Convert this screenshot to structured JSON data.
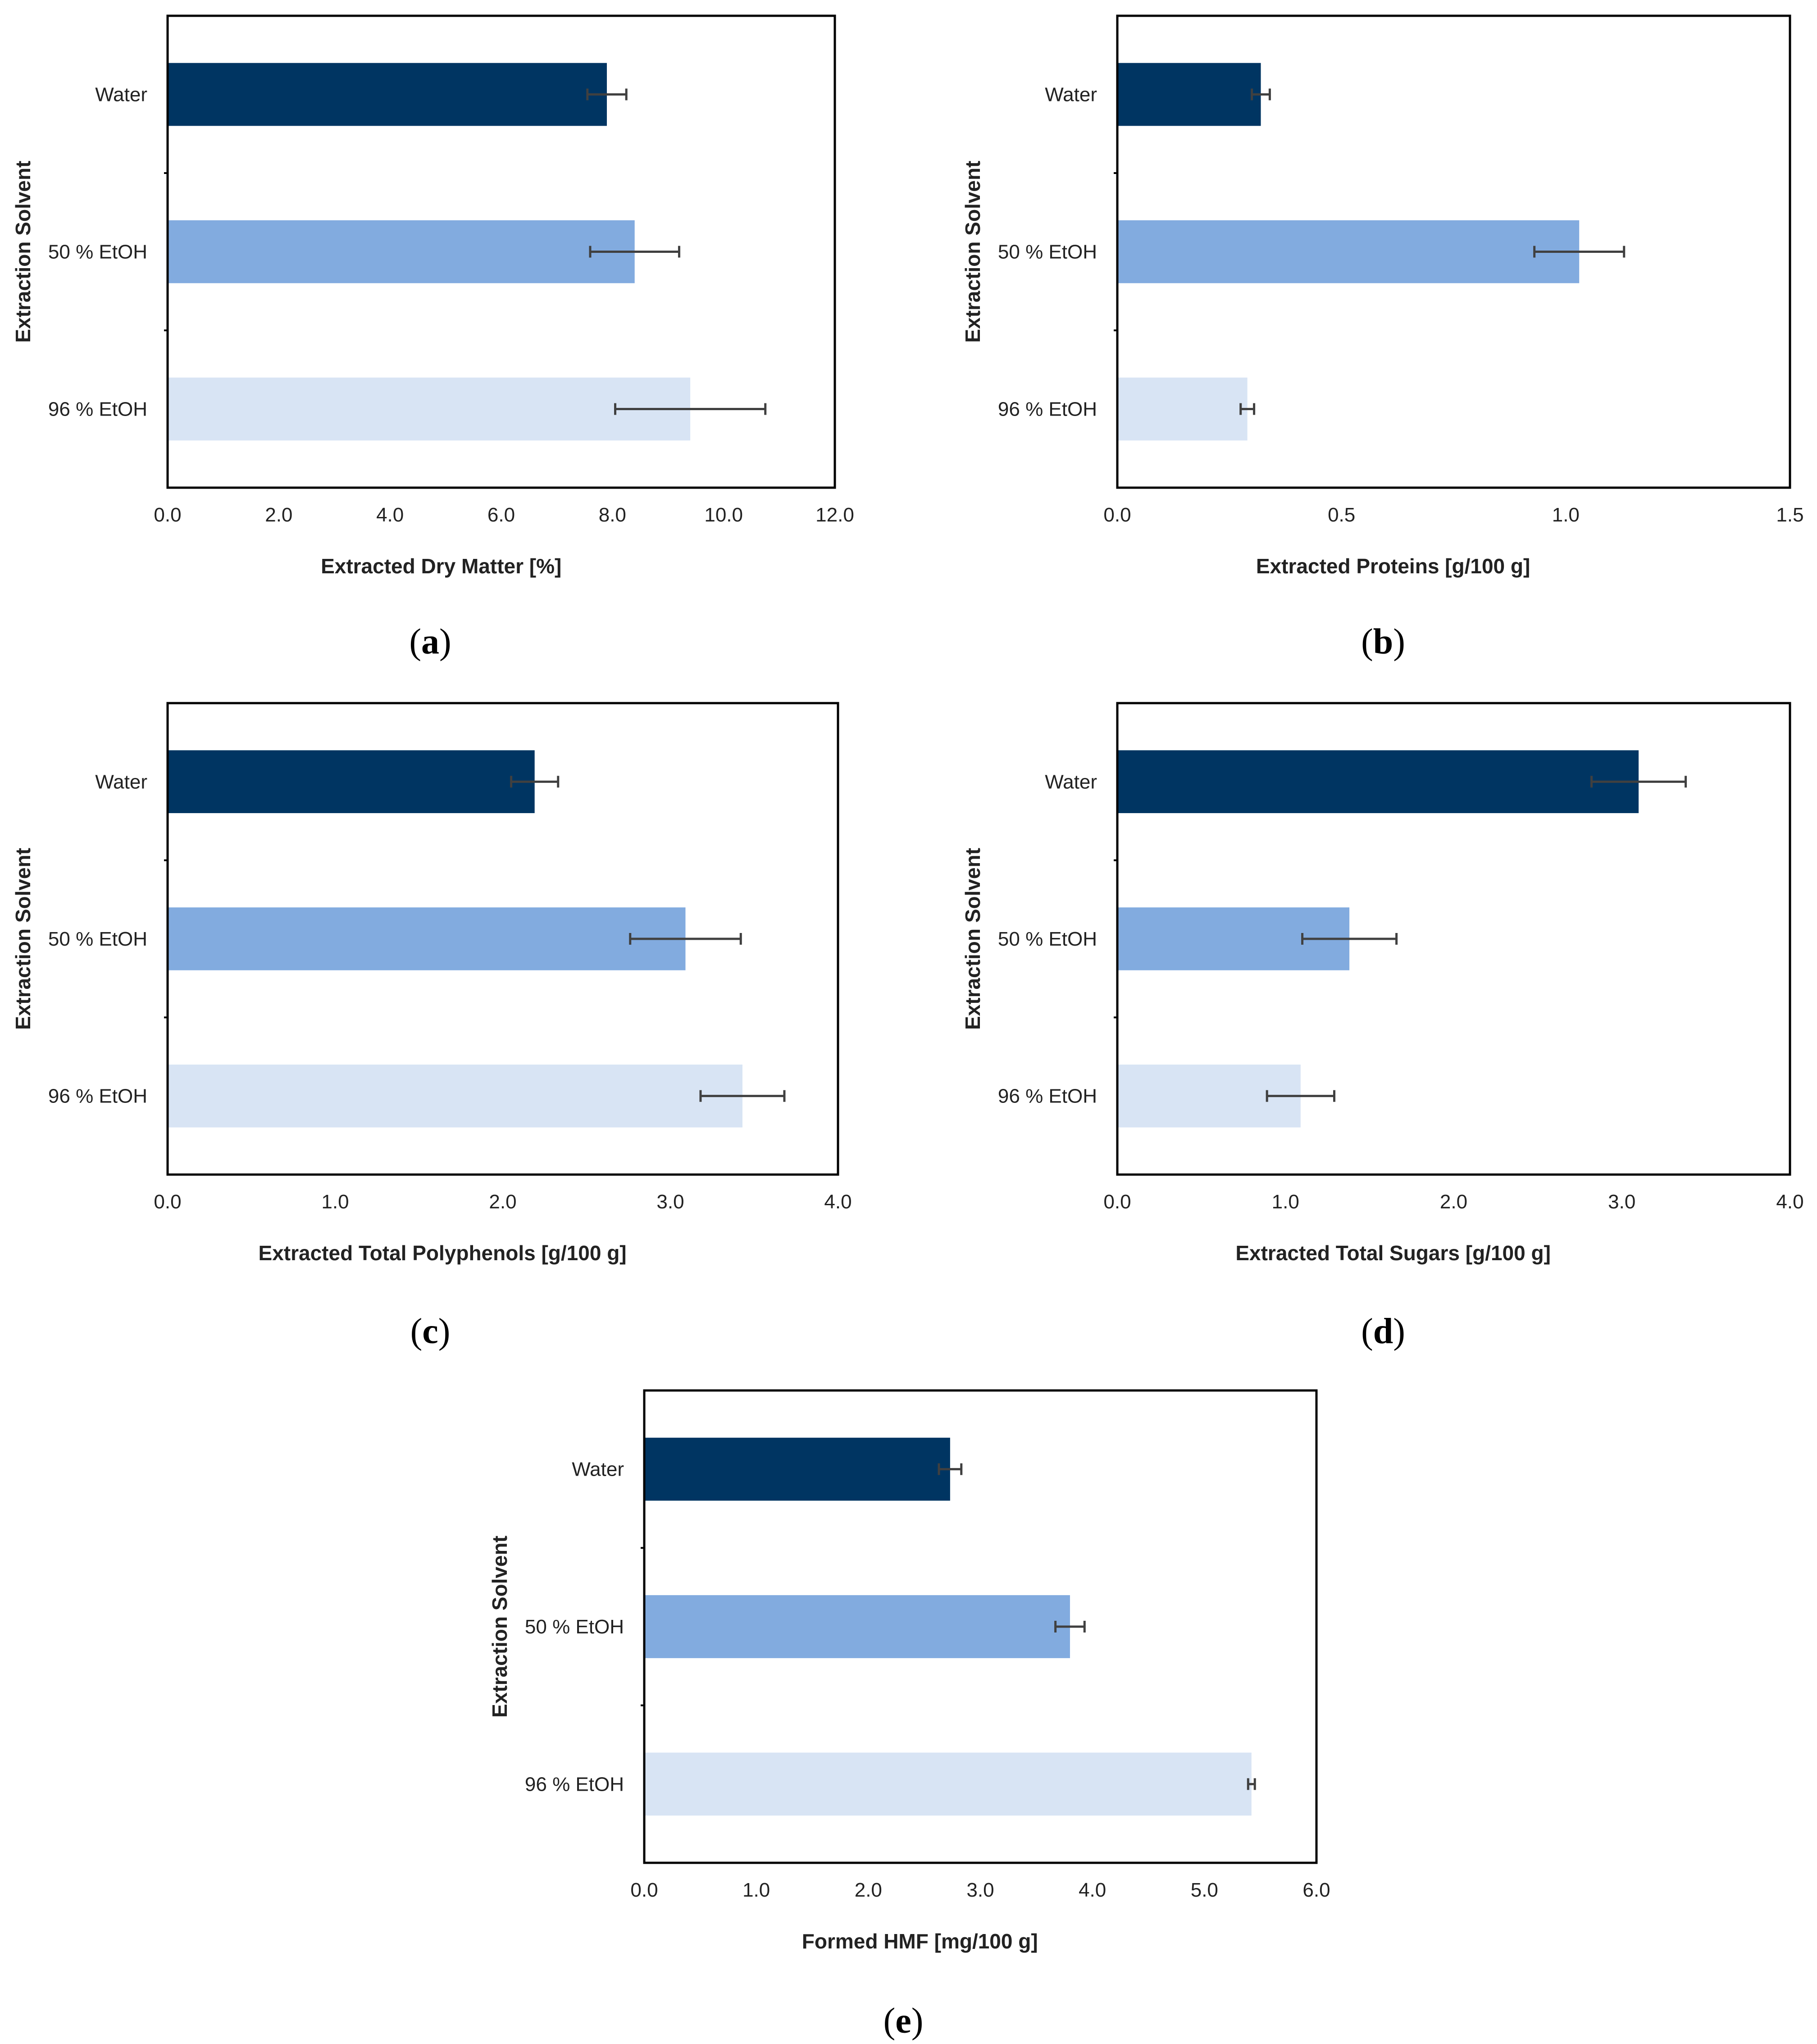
{
  "figure": {
    "categories": [
      "Water",
      "50 % EtOH",
      "96 % EtOH"
    ],
    "colors": {
      "Water": "#003562",
      "50 % EtOH": "#82ABDF",
      "96 % EtOH": "#D8E4F4"
    },
    "error_bar_color": "#404040"
  },
  "chart_data": [
    {
      "id": "a",
      "panel_label": "a",
      "type": "bar",
      "orientation": "horizontal",
      "categories": [
        "Water",
        "50 % EtOH",
        "96 % EtOH"
      ],
      "values": [
        7.9,
        8.4,
        9.4
      ],
      "errors": [
        0.35,
        0.8,
        1.35
      ],
      "xlabel": "Extracted Dry Matter [%]",
      "ylabel": "Extraction Solvent",
      "xlim": [
        0,
        12
      ],
      "xticks": [
        "0.0",
        "2.0",
        "4.0",
        "6.0",
        "8.0",
        "10.0",
        "12.0"
      ],
      "grid": false
    },
    {
      "id": "b",
      "panel_label": "b",
      "type": "bar",
      "orientation": "horizontal",
      "categories": [
        "Water",
        "50 % EtOH",
        "96 % EtOH"
      ],
      "values": [
        0.32,
        1.03,
        0.29
      ],
      "errors": [
        0.02,
        0.1,
        0.015
      ],
      "xlabel": "Extracted Proteins [g/100 g]",
      "ylabel": "Extraction Solvent",
      "xlim": [
        0,
        1.5
      ],
      "xticks": [
        "0.0",
        "0.5",
        "1.0",
        "1.5"
      ],
      "grid": false
    },
    {
      "id": "c",
      "panel_label": "c",
      "type": "bar",
      "orientation": "horizontal",
      "categories": [
        "Water",
        "50 % EtOH",
        "96 % EtOH"
      ],
      "values": [
        2.19,
        3.09,
        3.43
      ],
      "errors": [
        0.14,
        0.33,
        0.25
      ],
      "xlabel": "Extracted Total Polyphenols [g/100 g]",
      "ylabel": "Extraction Solvent",
      "xlim": [
        0,
        4
      ],
      "xticks": [
        "0.0",
        "1.0",
        "2.0",
        "3.0",
        "4.0"
      ],
      "grid": false
    },
    {
      "id": "d",
      "panel_label": "d",
      "type": "bar",
      "orientation": "horizontal",
      "categories": [
        "Water",
        "50 % EtOH",
        "96 % EtOH"
      ],
      "values": [
        3.1,
        1.38,
        1.09
      ],
      "errors": [
        0.28,
        0.28,
        0.2
      ],
      "xlabel": "Extracted Total Sugars [g/100 g]",
      "ylabel": "Extraction Solvent",
      "xlim": [
        0,
        4
      ],
      "xticks": [
        "0.0",
        "1.0",
        "2.0",
        "3.0",
        "4.0"
      ],
      "grid": false
    },
    {
      "id": "e",
      "panel_label": "e",
      "type": "bar",
      "orientation": "horizontal",
      "categories": [
        "Water",
        "50 % EtOH",
        "96 % EtOH"
      ],
      "values": [
        2.73,
        3.8,
        5.42
      ],
      "errors": [
        0.1,
        0.13,
        0.03
      ],
      "xlabel": "Formed HMF [mg/100 g]",
      "ylabel": "Extraction Solvent",
      "xlim": [
        0,
        6
      ],
      "xticks": [
        "0.0",
        "1.0",
        "2.0",
        "3.0",
        "4.0",
        "5.0",
        "6.0"
      ],
      "grid": false
    }
  ]
}
